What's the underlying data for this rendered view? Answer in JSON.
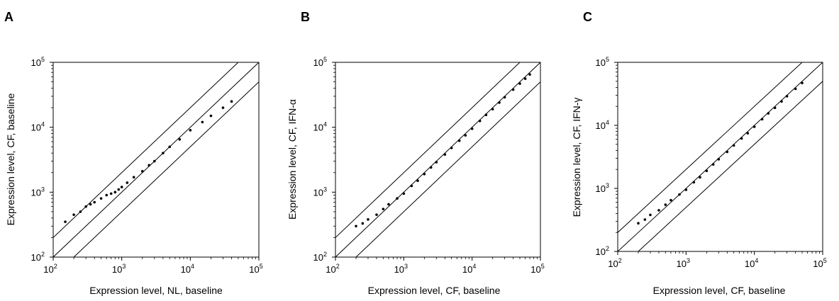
{
  "chart_data": [
    {
      "type": "scatter",
      "panel": "A",
      "xlabel": "Expression level, NL, baseline",
      "ylabel": "Expression level, CF, baseline",
      "xscale": "log",
      "yscale": "log",
      "xlim": [
        100,
        100000
      ],
      "ylim": [
        100,
        100000
      ],
      "ticks": [
        "10^2",
        "10^3",
        "10^4",
        "10^5"
      ],
      "reference_lines": [
        "y = 0.5x",
        "y = x",
        "y = 2x"
      ],
      "grid": false,
      "point_color": "#000000",
      "series": [
        {
          "x": [
            150,
            200,
            250,
            300,
            350,
            400,
            500,
            600,
            700,
            800,
            900,
            1000,
            1200,
            1500,
            2000,
            2500,
            3000,
            4000,
            5000,
            7000,
            10000,
            15000,
            20000,
            30000,
            40000
          ],
          "y": [
            350,
            450,
            500,
            600,
            650,
            700,
            800,
            900,
            950,
            1000,
            1100,
            1200,
            1400,
            1700,
            2100,
            2600,
            3000,
            4000,
            5000,
            6500,
            9000,
            12000,
            15000,
            20000,
            25000
          ]
        }
      ]
    },
    {
      "type": "scatter",
      "panel": "B",
      "xlabel": "Expression level, CF, baseline",
      "ylabel": "Expression level, CF, IFN-α",
      "xscale": "log",
      "yscale": "log",
      "xlim": [
        100,
        100000
      ],
      "ylim": [
        100,
        100000
      ],
      "ticks": [
        "10^2",
        "10^3",
        "10^4",
        "10^5"
      ],
      "reference_lines": [
        "y = 0.5x",
        "y = x",
        "y = 2x"
      ],
      "grid": false,
      "point_color": "#000000",
      "series": [
        {
          "x": [
            200,
            250,
            300,
            400,
            500,
            600,
            800,
            1000,
            1300,
            1600,
            2000,
            2500,
            3000,
            4000,
            5000,
            6500,
            8000,
            10000,
            13000,
            16000,
            20000,
            25000,
            30000,
            40000,
            50000,
            60000,
            70000
          ],
          "y": [
            300,
            330,
            380,
            450,
            550,
            650,
            800,
            950,
            1250,
            1500,
            1900,
            2400,
            2900,
            3800,
            4800,
            6200,
            7500,
            9500,
            12500,
            15500,
            19000,
            24000,
            29000,
            38000,
            47000,
            56000,
            65000
          ]
        }
      ]
    },
    {
      "type": "scatter",
      "panel": "C",
      "xlabel": "Expression level, CF, baseline",
      "ylabel": "Expression level, CF, IFN-γ",
      "xscale": "log",
      "yscale": "log",
      "xlim": [
        100,
        100000
      ],
      "ylim": [
        100,
        100000
      ],
      "ticks": [
        "10^2",
        "10^3",
        "10^4",
        "10^5"
      ],
      "reference_lines": [
        "y = 0.5x",
        "y = x",
        "y = 2x"
      ],
      "grid": false,
      "point_color": "#000000",
      "series": [
        {
          "x": [
            200,
            250,
            300,
            400,
            500,
            600,
            800,
            1000,
            1300,
            1600,
            2000,
            2500,
            3000,
            4000,
            5000,
            6500,
            8000,
            10000,
            13000,
            16000,
            20000,
            25000,
            30000,
            40000,
            50000
          ],
          "y": [
            280,
            320,
            380,
            450,
            550,
            650,
            800,
            950,
            1250,
            1500,
            1900,
            2400,
            2900,
            3800,
            4800,
            6200,
            7500,
            9500,
            12500,
            15500,
            19000,
            24000,
            29000,
            38000,
            47000
          ]
        }
      ]
    }
  ]
}
